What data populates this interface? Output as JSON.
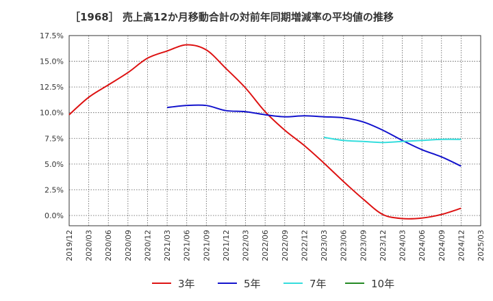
{
  "chart_data": {
    "type": "line",
    "title": "［1968］ 売上高12か月移動合計の対前年同期増減率の平均値の推移",
    "x": [
      "2019/12",
      "2020/03",
      "2020/06",
      "2020/09",
      "2020/12",
      "2021/03",
      "2021/06",
      "2021/09",
      "2021/12",
      "2022/03",
      "2022/06",
      "2022/09",
      "2022/12",
      "2023/03",
      "2023/06",
      "2023/09",
      "2023/12",
      "2024/03",
      "2024/06",
      "2024/09",
      "2024/12",
      "2025/03"
    ],
    "yticks": [
      "17.5%",
      "15.0%",
      "12.5%",
      "10.0%",
      "7.5%",
      "5.0%",
      "2.5%",
      "0.0%"
    ],
    "ylim": [
      -1.0,
      17.5
    ],
    "grid": true,
    "legend_position": "bottom",
    "series": [
      {
        "name": "3年",
        "color": "#dd1111",
        "values": [
          9.8,
          11.5,
          12.7,
          13.9,
          15.3,
          16.0,
          16.6,
          16.1,
          14.3,
          12.4,
          10.1,
          8.3,
          6.8,
          5.1,
          3.3,
          1.6,
          0.1,
          -0.3,
          -0.25,
          0.1,
          0.7,
          null
        ]
      },
      {
        "name": "5年",
        "color": "#1111cc",
        "values": [
          null,
          null,
          null,
          null,
          null,
          10.5,
          10.7,
          10.7,
          10.2,
          10.1,
          9.8,
          9.6,
          9.7,
          9.6,
          9.5,
          9.1,
          8.3,
          7.3,
          6.4,
          5.7,
          4.8,
          null
        ]
      },
      {
        "name": "7年",
        "color": "#33dddd",
        "values": [
          null,
          null,
          null,
          null,
          null,
          null,
          null,
          null,
          null,
          null,
          null,
          null,
          null,
          7.6,
          7.3,
          7.2,
          7.1,
          7.2,
          7.3,
          7.4,
          7.4,
          null
        ]
      },
      {
        "name": "10年",
        "color": "#228822",
        "values": [
          null,
          null,
          null,
          null,
          null,
          null,
          null,
          null,
          null,
          null,
          null,
          null,
          null,
          null,
          null,
          null,
          null,
          null,
          null,
          null,
          null,
          null
        ]
      }
    ]
  }
}
